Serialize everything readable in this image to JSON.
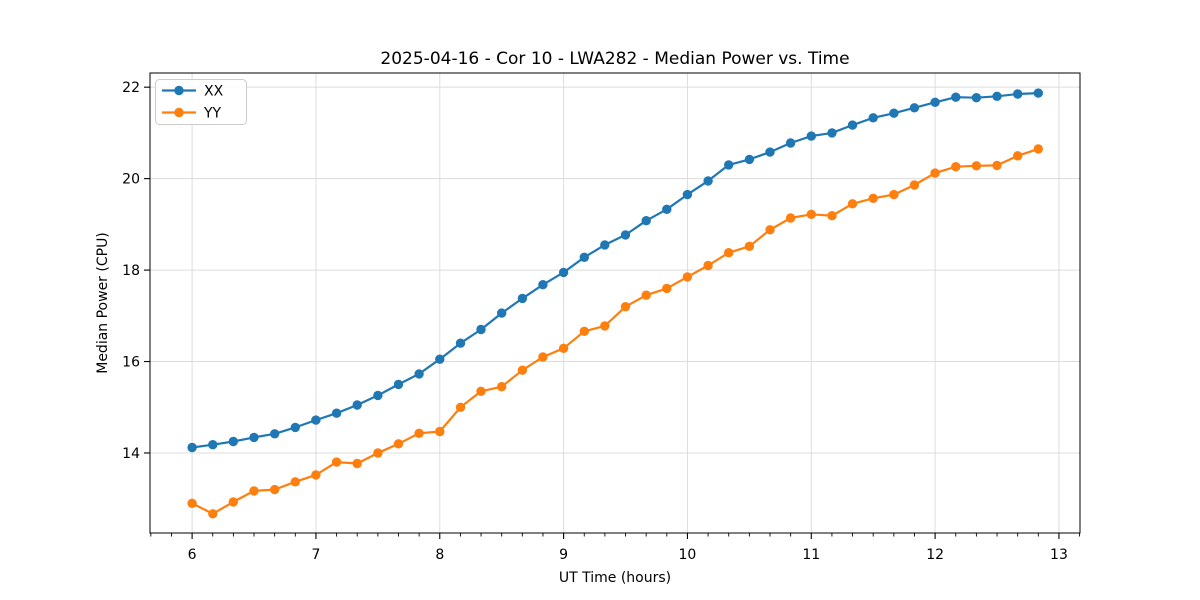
{
  "figure": {
    "background": "#ffffff"
  },
  "chart_data": {
    "type": "line",
    "title": "2025-04-16 - Cor 10 - LWA282 - Median Power vs. Time",
    "xlabel": "UT Time (hours)",
    "ylabel": "Median Power (CPU)",
    "xlim": [
      5.66,
      13.17
    ],
    "ylim": [
      12.25,
      22.31
    ],
    "xticks": [
      6,
      7,
      8,
      9,
      10,
      11,
      12,
      13
    ],
    "yticks": [
      14,
      16,
      18,
      20,
      22
    ],
    "x_minor_step": 0.166667,
    "grid": true,
    "grid_color": "#dcdcdc",
    "legend": {
      "position": "upper-left",
      "entries": [
        "XX",
        "YY"
      ]
    },
    "x": [
      6.0,
      6.167,
      6.333,
      6.5,
      6.667,
      6.833,
      7.0,
      7.167,
      7.333,
      7.5,
      7.667,
      7.833,
      8.0,
      8.167,
      8.333,
      8.5,
      8.667,
      8.833,
      9.0,
      9.167,
      9.333,
      9.5,
      9.667,
      9.833,
      10.0,
      10.167,
      10.333,
      10.5,
      10.667,
      10.833,
      11.0,
      11.167,
      11.333,
      11.5,
      11.667,
      11.833,
      12.0,
      12.167,
      12.333,
      12.5,
      12.667,
      12.833
    ],
    "series": [
      {
        "name": "XX",
        "color": "#1f77b4",
        "values": [
          14.12,
          14.18,
          14.25,
          14.34,
          14.42,
          14.56,
          14.72,
          14.87,
          15.05,
          15.26,
          15.5,
          15.73,
          16.05,
          16.4,
          16.7,
          17.06,
          17.38,
          17.68,
          17.95,
          18.28,
          18.55,
          18.77,
          19.08,
          19.33,
          19.65,
          19.95,
          20.3,
          20.42,
          20.58,
          20.78,
          20.93,
          21.0,
          21.17,
          21.33,
          21.43,
          21.55,
          21.67,
          21.78,
          21.77,
          21.8,
          21.85,
          21.87
        ]
      },
      {
        "name": "YY",
        "color": "#ff7f0e",
        "values": [
          12.9,
          12.67,
          12.93,
          13.17,
          13.2,
          13.37,
          13.52,
          13.8,
          13.77,
          14.0,
          14.2,
          14.43,
          14.47,
          15.0,
          15.35,
          15.45,
          15.81,
          16.1,
          16.29,
          16.66,
          16.78,
          17.2,
          17.45,
          17.6,
          17.85,
          18.1,
          18.38,
          18.52,
          18.88,
          19.14,
          19.22,
          19.19,
          19.45,
          19.57,
          19.65,
          19.86,
          20.12,
          20.26,
          20.28,
          20.29,
          20.5,
          20.65
        ]
      }
    ]
  }
}
